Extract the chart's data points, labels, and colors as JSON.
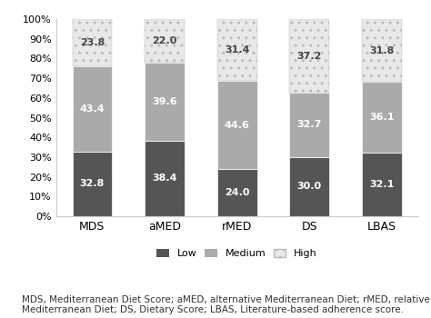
{
  "categories": [
    "MDS",
    "aMED",
    "rMED",
    "DS",
    "LBAS"
  ],
  "low": [
    32.8,
    38.4,
    24.0,
    30.0,
    32.1
  ],
  "medium": [
    43.4,
    39.6,
    44.6,
    32.7,
    36.1
  ],
  "high": [
    23.8,
    22.0,
    31.4,
    37.2,
    31.8
  ],
  "low_color": "#555555",
  "medium_color": "#aaaaaa",
  "high_color": "#e8e8e8",
  "bar_width": 0.55,
  "ylim": [
    0,
    100
  ],
  "yticks": [
    0,
    10,
    20,
    30,
    40,
    50,
    60,
    70,
    80,
    90,
    100
  ],
  "ytick_labels": [
    "0%",
    "10%",
    "20%",
    "30%",
    "40%",
    "50%",
    "60%",
    "70%",
    "80%",
    "90%",
    "100%"
  ],
  "legend_labels": [
    "Low",
    "Medium",
    "High"
  ],
  "caption": "MDS, Mediterranean Diet Score; aMED, alternative Mediterranean Diet; rMED, relative\nMediterranean Diet; DS, Dietary Score; LBAS, Literature-based adherence score.",
  "font_size_ticks": 8,
  "font_size_labels": 9,
  "font_size_values": 8,
  "font_size_caption": 7.5
}
